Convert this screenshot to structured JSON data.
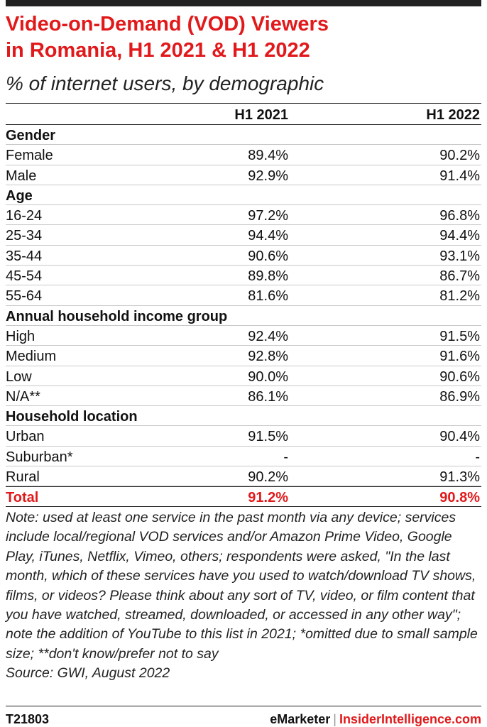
{
  "header": {
    "title_line1": "Video-on-Demand (VOD) Viewers",
    "title_line2": "in Romania, H1 2021 & H1 2022",
    "subtitle": "% of internet users, by demographic"
  },
  "chart_data": {
    "type": "table",
    "title": "Video-on-Demand (VOD) Viewers in Romania, H1 2021 & H1 2022",
    "subtitle": "% of internet users, by demographic",
    "columns": [
      "",
      "H1 2021",
      "H1 2022"
    ],
    "rows": [
      {
        "kind": "group",
        "label": "Gender"
      },
      {
        "kind": "data",
        "label": "Female",
        "v1": "89.4%",
        "v2": "90.2%"
      },
      {
        "kind": "data",
        "label": "Male",
        "v1": "92.9%",
        "v2": "91.4%"
      },
      {
        "kind": "group",
        "label": "Age"
      },
      {
        "kind": "data",
        "label": "16-24",
        "v1": "97.2%",
        "v2": "96.8%"
      },
      {
        "kind": "data",
        "label": "25-34",
        "v1": "94.4%",
        "v2": "94.4%"
      },
      {
        "kind": "data",
        "label": "35-44",
        "v1": "90.6%",
        "v2": "93.1%"
      },
      {
        "kind": "data",
        "label": "45-54",
        "v1": "89.8%",
        "v2": "86.7%"
      },
      {
        "kind": "data",
        "label": "55-64",
        "v1": "81.6%",
        "v2": "81.2%"
      },
      {
        "kind": "group",
        "label": "Annual household income group"
      },
      {
        "kind": "data",
        "label": "High",
        "v1": "92.4%",
        "v2": "91.5%"
      },
      {
        "kind": "data",
        "label": "Medium",
        "v1": "92.8%",
        "v2": "91.6%"
      },
      {
        "kind": "data",
        "label": "Low",
        "v1": "90.0%",
        "v2": "90.6%"
      },
      {
        "kind": "data",
        "label": "N/A**",
        "v1": "86.1%",
        "v2": "86.9%"
      },
      {
        "kind": "group",
        "label": "Household location"
      },
      {
        "kind": "data",
        "label": "Urban",
        "v1": "91.5%",
        "v2": "90.4%"
      },
      {
        "kind": "data",
        "label": "Suburban*",
        "v1": "-",
        "v2": "-"
      },
      {
        "kind": "data",
        "label": "Rural",
        "v1": "90.2%",
        "v2": "91.3%"
      },
      {
        "kind": "total",
        "label": "Total",
        "v1": "91.2%",
        "v2": "90.8%"
      }
    ]
  },
  "note": "Note: used at least one service in the past month via any device; services include local/regional VOD services and/or Amazon Prime Video, Google Play, iTunes, Netflix, Vimeo, others; respondents were asked, \"In the last month, which of these services have you used to watch/download TV shows, films, or videos? Please think about any sort of TV, video, or film content that you have watched, streamed, downloaded, or accessed in any other way\"; note the addition of YouTube to this list in 2021; *omitted due to small sample size; **don't know/prefer not to say",
  "source": "Source: GWI, August 2022",
  "footer": {
    "code": "T21803",
    "brand_emarketer": "eMarketer",
    "separator": "|",
    "brand_insider": "InsiderIntelligence.com"
  },
  "colors": {
    "accent": "#e1191b",
    "text": "#111111",
    "rule": "#c8c8c8"
  }
}
